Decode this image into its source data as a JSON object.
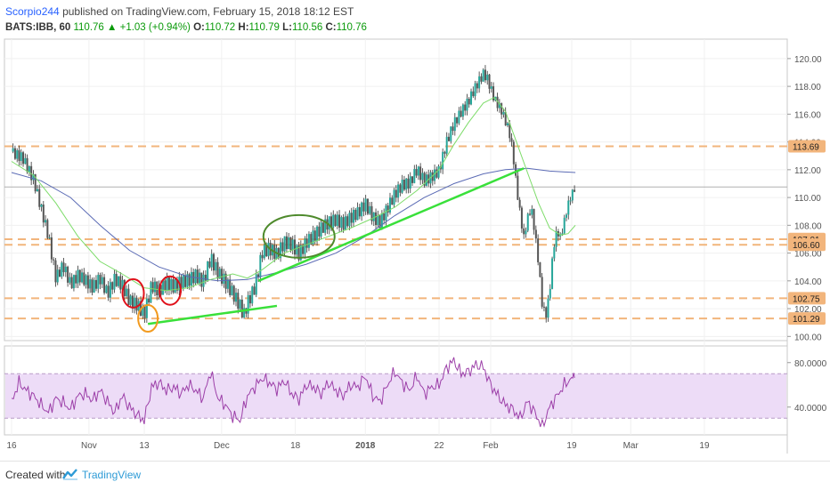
{
  "header": {
    "author": "Scorpio244",
    "published_text": "published on TradingView.com, February 15, 2018 18:12 EST",
    "symbol": "BATS:IBB, 60",
    "last": "110.76",
    "change": "+1.03 (+0.94%)",
    "o_label": "O:",
    "o_value": "110.72",
    "h_label": "H:",
    "h_value": "110.79",
    "l_label": "L:",
    "l_value": "110.56",
    "c_label": "C:",
    "c_value": "110.76"
  },
  "footer": {
    "created_with": "Created with",
    "brand": "TradingView"
  },
  "colors": {
    "up_green": "#0a9a0a",
    "ma_fast": "#7ddc6a",
    "ma_slow": "#5b6bb5",
    "trendline": "#39e03a",
    "level": "#f2b57c",
    "circle_red": "#e0101a",
    "circle_orange": "#f29a1e",
    "circle_olive": "#4e8a2c",
    "rsi_line": "#9c3fa8",
    "rsi_band": "#eddcf7"
  },
  "chart_data": {
    "type": "candlestick",
    "price_axis": {
      "range": [
        99.7,
        121.4
      ],
      "ticks": [
        "100.00",
        "102.00",
        "104.00",
        "106.00",
        "108.00",
        "110.00",
        "112.00",
        "114.00",
        "116.00",
        "118.00",
        "120.00"
      ],
      "tick_values": [
        100,
        102,
        104,
        106,
        108,
        110,
        112,
        114,
        116,
        118,
        120
      ]
    },
    "price_badges": [
      {
        "label": "113.69",
        "value": 113.69
      },
      {
        "label": "107.01",
        "value": 107.01
      },
      {
        "label": "106.60",
        "value": 106.6
      },
      {
        "label": "102.75",
        "value": 102.75
      },
      {
        "label": "101.29",
        "value": 101.29
      }
    ],
    "horizontal_levels": [
      113.69,
      107.0,
      106.6,
      102.75,
      101.29
    ],
    "last_price_line": 110.76,
    "time_axis": {
      "labels": [
        "16",
        "Nov",
        "13",
        "Dec",
        "18",
        "2018",
        "22",
        "Feb",
        "19",
        "Mar",
        "19"
      ],
      "positions": [
        0,
        21,
        36,
        57,
        77,
        96,
        116,
        130,
        152,
        168,
        188
      ]
    },
    "price_path": [
      [
        0,
        113.3
      ],
      [
        3,
        113.0
      ],
      [
        6,
        111.5
      ],
      [
        8,
        109.5
      ],
      [
        10,
        107.5
      ],
      [
        12,
        104.5
      ],
      [
        14,
        105.4
      ],
      [
        16,
        104.0
      ],
      [
        18,
        104.6
      ],
      [
        20,
        104.2
      ],
      [
        22,
        103.6
      ],
      [
        24,
        104.2
      ],
      [
        26,
        103.0
      ],
      [
        28,
        104.0
      ],
      [
        30,
        103.5
      ],
      [
        32,
        102.3
      ],
      [
        34,
        102.0
      ],
      [
        36,
        101.3
      ],
      [
        37,
        102.3
      ],
      [
        38,
        103.4
      ],
      [
        40,
        103.0
      ],
      [
        42,
        103.6
      ],
      [
        44,
        103.4
      ],
      [
        46,
        103.8
      ],
      [
        48,
        104.0
      ],
      [
        50,
        104.4
      ],
      [
        52,
        104.0
      ],
      [
        54,
        105.8
      ],
      [
        56,
        104.8
      ],
      [
        58,
        104.2
      ],
      [
        60,
        103.4
      ],
      [
        62,
        102.5
      ],
      [
        63,
        101.8
      ],
      [
        64,
        102.7
      ],
      [
        66,
        103.8
      ],
      [
        67,
        105.0
      ],
      [
        68,
        106.3
      ],
      [
        70,
        106.5
      ],
      [
        72,
        106.0
      ],
      [
        74,
        106.8
      ],
      [
        76,
        106.6
      ],
      [
        78,
        105.8
      ],
      [
        80,
        106.6
      ],
      [
        82,
        107.0
      ],
      [
        84,
        107.5
      ],
      [
        86,
        107.9
      ],
      [
        88,
        108.1
      ],
      [
        90,
        107.8
      ],
      [
        92,
        108.3
      ],
      [
        94,
        108.7
      ],
      [
        96,
        109.4
      ],
      [
        98,
        108.5
      ],
      [
        100,
        108.2
      ],
      [
        102,
        109.3
      ],
      [
        104,
        110.4
      ],
      [
        106,
        111.1
      ],
      [
        108,
        111.3
      ],
      [
        110,
        112.3
      ],
      [
        112,
        111.5
      ],
      [
        114,
        111.8
      ],
      [
        116,
        112.2
      ],
      [
        118,
        114.2
      ],
      [
        120,
        115.5
      ],
      [
        122,
        116.3
      ],
      [
        124,
        117.0
      ],
      [
        126,
        118.0
      ],
      [
        128,
        118.8
      ],
      [
        129,
        118.5
      ],
      [
        131,
        116.9
      ],
      [
        133,
        116.0
      ],
      [
        135,
        114.5
      ],
      [
        136,
        113.0
      ],
      [
        137,
        110.5
      ],
      [
        138,
        108.5
      ],
      [
        139,
        106.8
      ],
      [
        140,
        108.2
      ],
      [
        141,
        109.0
      ],
      [
        142,
        107.2
      ],
      [
        143,
        105.0
      ],
      [
        144,
        102.0
      ],
      [
        145,
        101.3
      ],
      [
        146,
        103.0
      ],
      [
        147,
        106.2
      ],
      [
        148,
        107.5
      ],
      [
        149,
        107.0
      ],
      [
        150,
        108.3
      ],
      [
        151,
        109.5
      ],
      [
        152,
        110.3
      ],
      [
        153,
        110.8
      ]
    ],
    "ma_fast": [
      [
        0,
        112.6
      ],
      [
        6,
        111.6
      ],
      [
        12,
        109.6
      ],
      [
        18,
        107.2
      ],
      [
        24,
        105.4
      ],
      [
        30,
        104.5
      ],
      [
        36,
        103.5
      ],
      [
        42,
        103.3
      ],
      [
        48,
        103.5
      ],
      [
        54,
        104.1
      ],
      [
        60,
        104.5
      ],
      [
        64,
        104.2
      ],
      [
        68,
        104.8
      ],
      [
        74,
        106.0
      ],
      [
        80,
        106.6
      ],
      [
        86,
        107.2
      ],
      [
        92,
        107.8
      ],
      [
        98,
        108.5
      ],
      [
        104,
        109.3
      ],
      [
        110,
        110.5
      ],
      [
        116,
        112.0
      ],
      [
        120,
        113.8
      ],
      [
        124,
        115.4
      ],
      [
        128,
        116.8
      ],
      [
        131,
        117.2
      ],
      [
        134,
        116.2
      ],
      [
        137,
        114.0
      ],
      [
        140,
        111.8
      ],
      [
        143,
        109.6
      ],
      [
        146,
        107.8
      ],
      [
        149,
        107.3
      ],
      [
        151,
        107.4
      ],
      [
        153,
        108.0
      ]
    ],
    "ma_slow": [
      [
        0,
        111.8
      ],
      [
        8,
        111.2
      ],
      [
        16,
        110.0
      ],
      [
        24,
        108.0
      ],
      [
        32,
        106.2
      ],
      [
        40,
        105.0
      ],
      [
        48,
        104.3
      ],
      [
        56,
        104.0
      ],
      [
        64,
        104.1
      ],
      [
        72,
        104.6
      ],
      [
        80,
        105.2
      ],
      [
        88,
        106.0
      ],
      [
        96,
        107.2
      ],
      [
        104,
        108.7
      ],
      [
        112,
        110.0
      ],
      [
        120,
        111.0
      ],
      [
        128,
        111.7
      ],
      [
        134,
        112.0
      ],
      [
        140,
        112.1
      ],
      [
        146,
        111.9
      ],
      [
        153,
        111.8
      ]
    ],
    "rsi": {
      "axis_ticks": [
        "80.0000",
        "40.0000"
      ],
      "tick_values": [
        80,
        40
      ],
      "range": [
        15,
        95
      ],
      "band": [
        30,
        70
      ],
      "values": [
        [
          0,
          45
        ],
        [
          2,
          62
        ],
        [
          4,
          55
        ],
        [
          6,
          50
        ],
        [
          8,
          42
        ],
        [
          10,
          35
        ],
        [
          12,
          48
        ],
        [
          14,
          44
        ],
        [
          16,
          38
        ],
        [
          18,
          50
        ],
        [
          20,
          52
        ],
        [
          22,
          46
        ],
        [
          24,
          55
        ],
        [
          26,
          45
        ],
        [
          28,
          35
        ],
        [
          30,
          50
        ],
        [
          32,
          40
        ],
        [
          34,
          33
        ],
        [
          36,
          28
        ],
        [
          38,
          58
        ],
        [
          40,
          62
        ],
        [
          42,
          55
        ],
        [
          44,
          58
        ],
        [
          46,
          52
        ],
        [
          48,
          60
        ],
        [
          50,
          55
        ],
        [
          52,
          48
        ],
        [
          54,
          72
        ],
        [
          56,
          48
        ],
        [
          58,
          42
        ],
        [
          60,
          32
        ],
        [
          62,
          28
        ],
        [
          64,
          50
        ],
        [
          66,
          58
        ],
        [
          68,
          66
        ],
        [
          70,
          62
        ],
        [
          72,
          56
        ],
        [
          74,
          64
        ],
        [
          76,
          52
        ],
        [
          78,
          47
        ],
        [
          80,
          60
        ],
        [
          82,
          58
        ],
        [
          84,
          52
        ],
        [
          86,
          62
        ],
        [
          88,
          55
        ],
        [
          90,
          50
        ],
        [
          92,
          60
        ],
        [
          94,
          58
        ],
        [
          96,
          68
        ],
        [
          98,
          50
        ],
        [
          100,
          45
        ],
        [
          102,
          60
        ],
        [
          104,
          72
        ],
        [
          106,
          62
        ],
        [
          108,
          55
        ],
        [
          110,
          68
        ],
        [
          112,
          52
        ],
        [
          114,
          58
        ],
        [
          116,
          60
        ],
        [
          118,
          75
        ],
        [
          120,
          82
        ],
        [
          122,
          70
        ],
        [
          124,
          72
        ],
        [
          126,
          78
        ],
        [
          128,
          76
        ],
        [
          130,
          60
        ],
        [
          132,
          50
        ],
        [
          134,
          42
        ],
        [
          136,
          38
        ],
        [
          138,
          30
        ],
        [
          140,
          45
        ],
        [
          142,
          35
        ],
        [
          144,
          22
        ],
        [
          146,
          40
        ],
        [
          148,
          50
        ],
        [
          150,
          60
        ],
        [
          152,
          66
        ],
        [
          153,
          68
        ]
      ]
    },
    "annotations": {
      "trendline_upper": [
        [
          67,
          104.0
        ],
        [
          139,
          112.1
        ]
      ],
      "trendline_lower": [
        [
          37,
          100.9
        ],
        [
          72,
          102.2
        ]
      ],
      "circles": [
        {
          "color": "circle_red",
          "x": 33,
          "y": 103.1
        },
        {
          "color": "circle_red",
          "x": 43,
          "y": 103.3
        },
        {
          "color": "circle_orange",
          "x": 37,
          "y": 101.3
        },
        {
          "color": "circle_olive",
          "x": 78,
          "y": 107.2
        }
      ]
    }
  }
}
